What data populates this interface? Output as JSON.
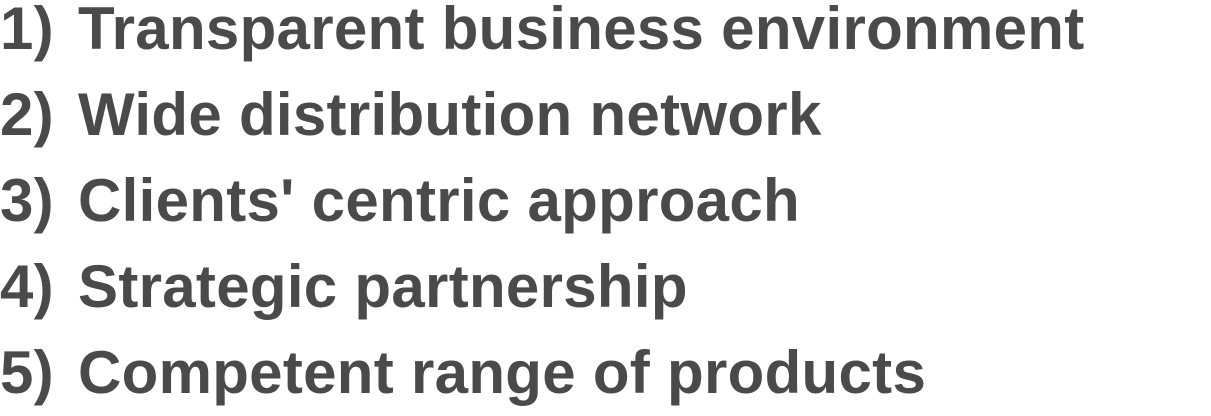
{
  "items": [
    {
      "number": "1)",
      "text": "Transparent business environment"
    },
    {
      "number": "2)",
      "text": "Wide distribution network"
    },
    {
      "number": "3)",
      "text": "Clients' centric approach"
    },
    {
      "number": "4)",
      "text": "Strategic partnership"
    },
    {
      "number": "5)",
      "text": "Competent range of products"
    }
  ],
  "colors": {
    "text": "#4a4a4a",
    "background": "#ffffff"
  }
}
